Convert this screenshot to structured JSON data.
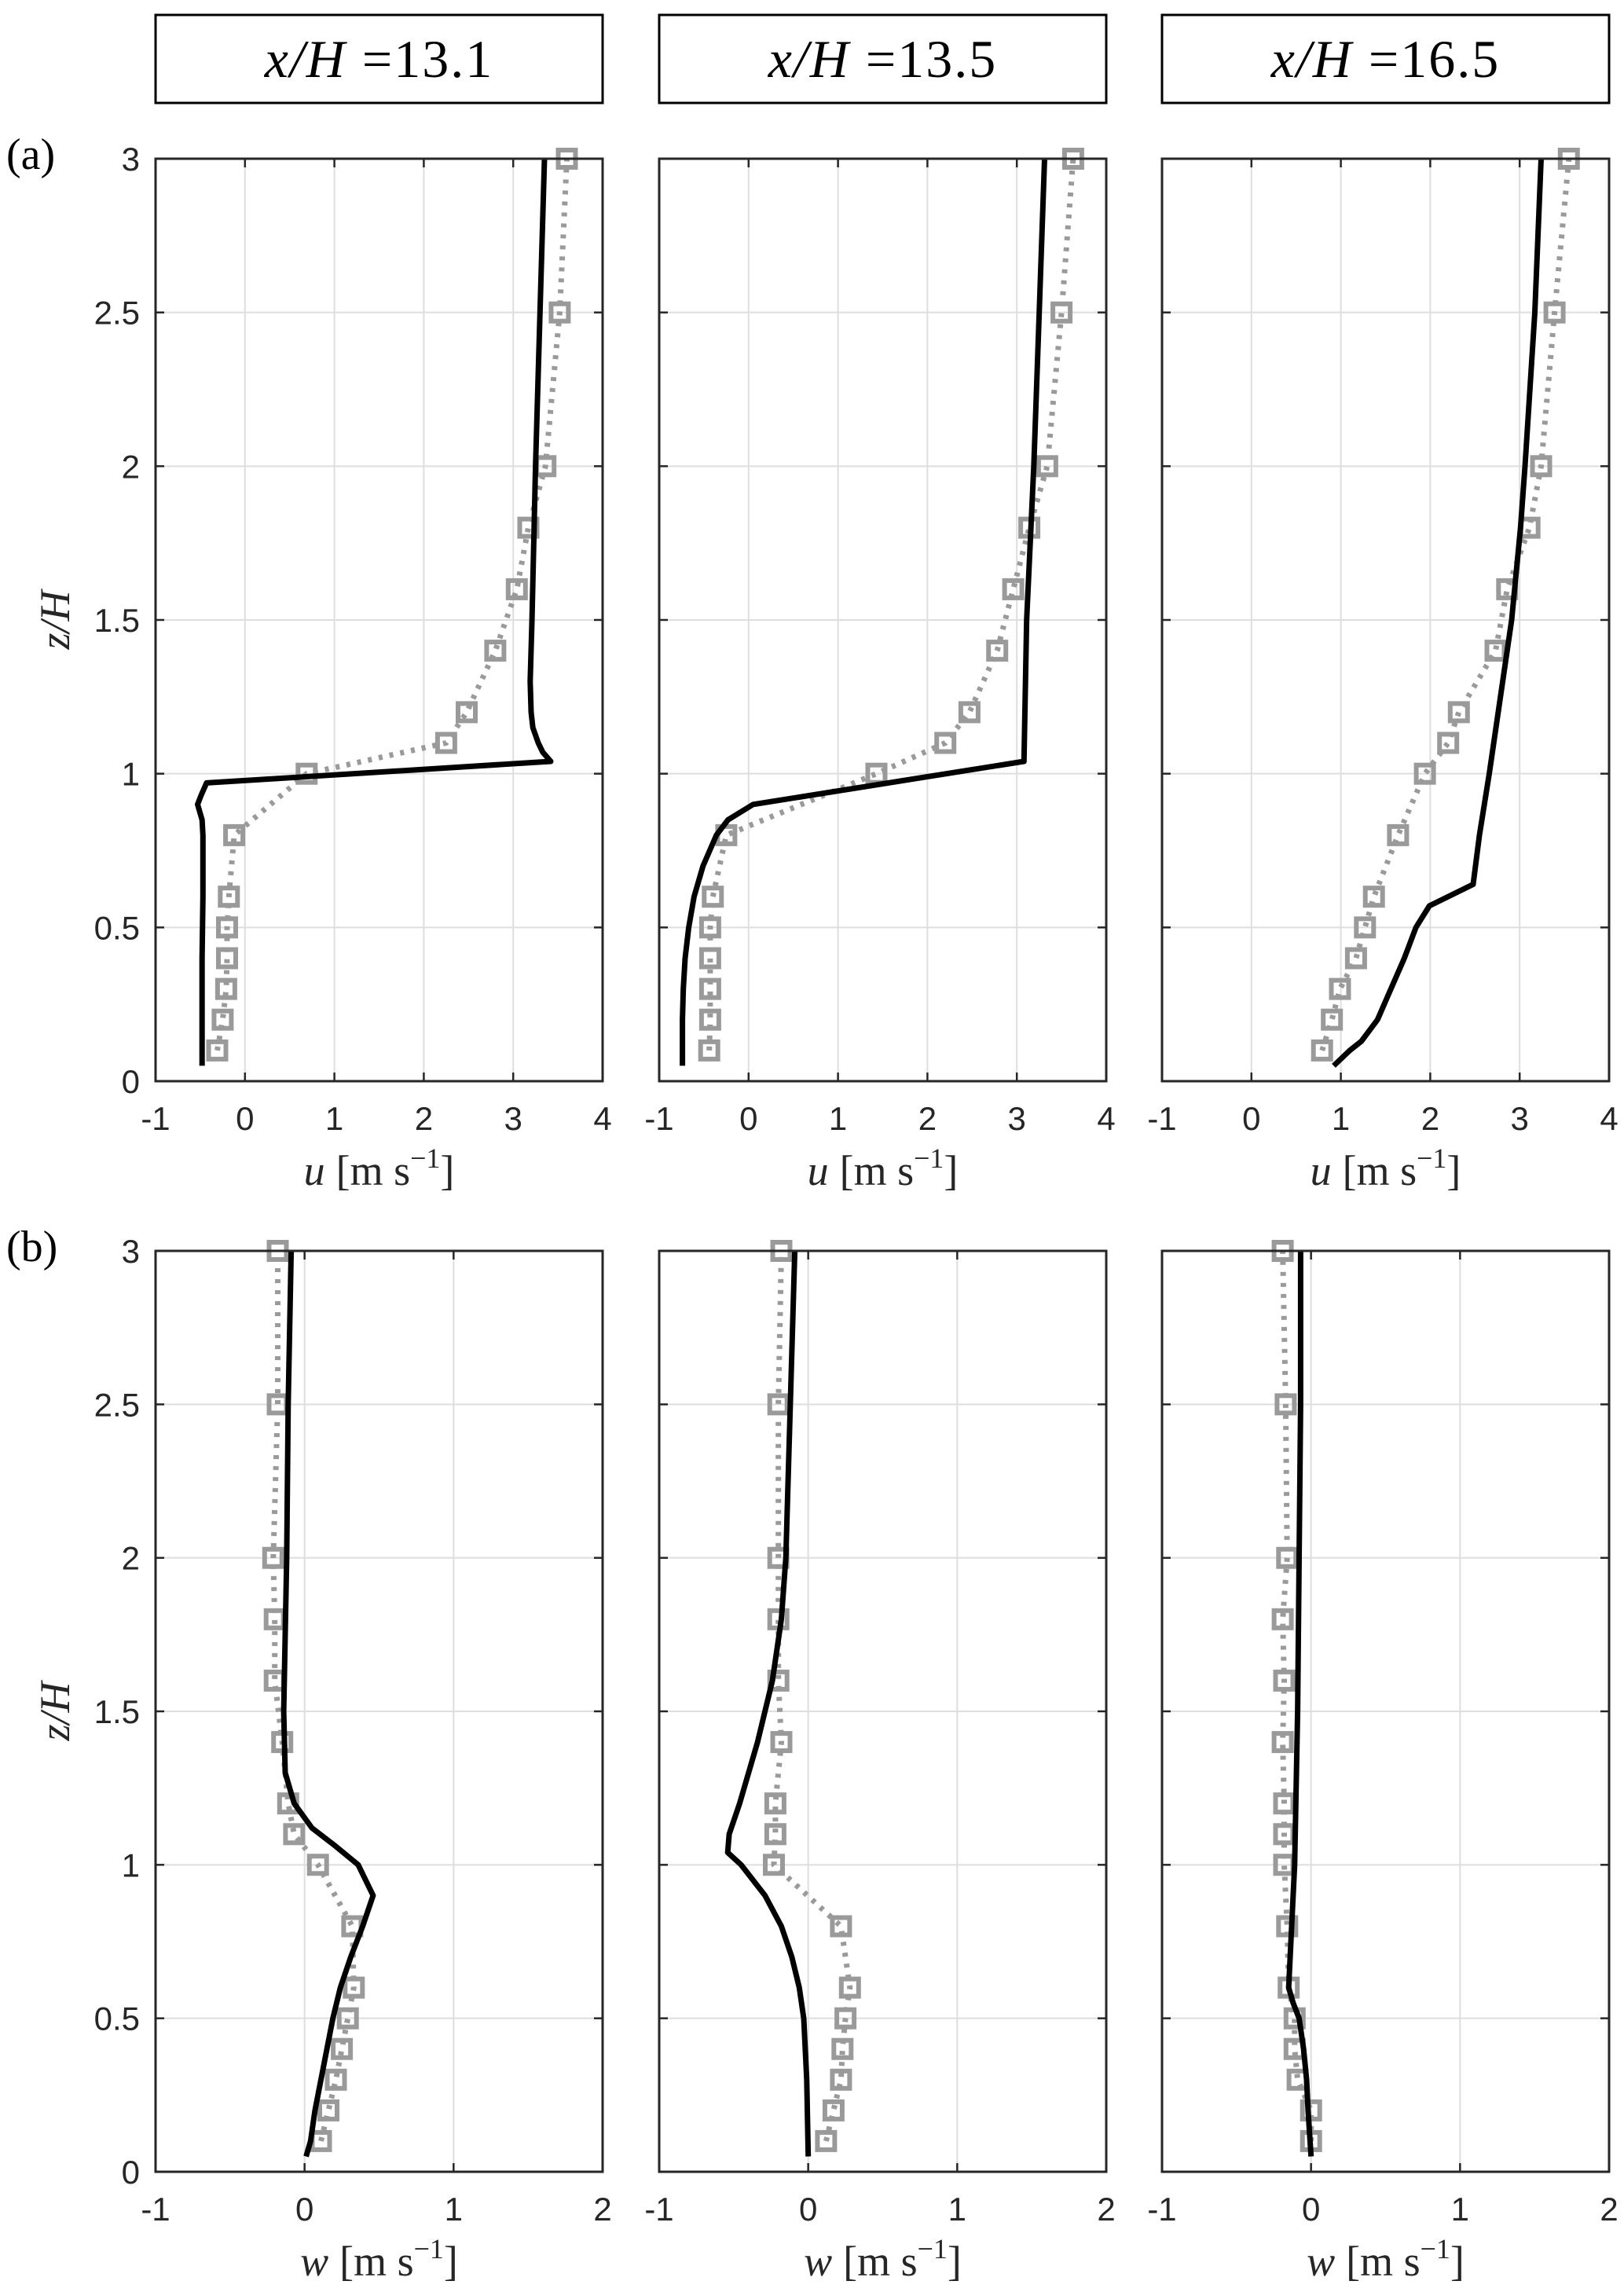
{
  "figure": {
    "panel_labels": [
      "(a)",
      "(b)"
    ]
  },
  "columns": [
    {
      "symbol": "x/H",
      "value": "=13.1"
    },
    {
      "symbol": "x/H",
      "value": "=13.5"
    },
    {
      "symbol": "x/H",
      "value": "=16.5"
    }
  ],
  "style": {
    "model_color": "#000000",
    "measured_color": "#9a9a9a",
    "grid_color": "#dedede",
    "axis_color": "#262626"
  },
  "chart_data": [
    {
      "type": "line",
      "xlim": [
        -1,
        4
      ],
      "ylim": [
        0,
        3
      ],
      "xticks": [
        -1,
        0,
        1,
        2,
        3,
        4
      ],
      "xtick_labels": [
        "-1",
        "0",
        "1",
        "2",
        "3",
        "4"
      ],
      "yticks": [
        0,
        0.5,
        1,
        1.5,
        2,
        2.5,
        3
      ],
      "ytick_labels": [
        "0",
        "0.5",
        "1",
        "1.5",
        "2",
        "2.5",
        "3"
      ],
      "grid": true,
      "xlabel": {
        "symbol": "u",
        "unit": "[m s",
        "unit_exp": "−1",
        "unit_close": "]"
      },
      "ylabel": {
        "symbol": "z/H"
      },
      "series": [
        {
          "line": "dotted",
          "marker": "square",
          "color": "#9a9a9a",
          "x": [
            -0.31,
            -0.25,
            -0.21,
            -0.2,
            -0.2,
            -0.18,
            -0.12,
            0.69,
            2.25,
            2.48,
            2.8,
            3.04,
            3.17,
            3.36,
            3.52,
            3.6
          ],
          "y": [
            0.1,
            0.2,
            0.3,
            0.4,
            0.5,
            0.6,
            0.8,
            1.0,
            1.1,
            1.2,
            1.4,
            1.6,
            1.8,
            2.0,
            2.5,
            3.0
          ]
        },
        {
          "line": "solid",
          "marker": "none",
          "color": "#000000",
          "x": [
            -0.48,
            -0.48,
            -0.48,
            -0.47,
            -0.47,
            -0.48,
            -0.53,
            -0.49,
            -0.43,
            3.42,
            3.33,
            3.28,
            3.22,
            3.2,
            3.19,
            3.21,
            3.25,
            3.3,
            3.35
          ],
          "y": [
            0.05,
            0.2,
            0.4,
            0.6,
            0.8,
            0.85,
            0.9,
            0.93,
            0.97,
            1.04,
            1.07,
            1.1,
            1.15,
            1.2,
            1.3,
            1.5,
            2.0,
            2.5,
            3.0
          ]
        }
      ]
    },
    {
      "type": "line",
      "xlim": [
        -1,
        4
      ],
      "ylim": [
        0,
        3
      ],
      "xticks": [
        -1,
        0,
        1,
        2,
        3,
        4
      ],
      "xtick_labels": [
        "-1",
        "0",
        "1",
        "2",
        "3",
        "4"
      ],
      "yticks": [
        0,
        0.5,
        1,
        1.5,
        2,
        2.5,
        3
      ],
      "grid": true,
      "xlabel": {
        "symbol": "u",
        "unit": "[m s",
        "unit_exp": "−1",
        "unit_close": "]"
      },
      "series": [
        {
          "line": "dotted",
          "marker": "square",
          "color": "#9a9a9a",
          "x": [
            -0.44,
            -0.43,
            -0.43,
            -0.43,
            -0.43,
            -0.4,
            -0.25,
            1.43,
            2.2,
            2.47,
            2.78,
            2.96,
            3.14,
            3.34,
            3.5,
            3.63
          ],
          "y": [
            0.1,
            0.2,
            0.3,
            0.4,
            0.5,
            0.6,
            0.8,
            1.0,
            1.1,
            1.2,
            1.4,
            1.6,
            1.8,
            2.0,
            2.5,
            3.0
          ]
        },
        {
          "line": "solid",
          "marker": "none",
          "color": "#000000",
          "x": [
            -0.74,
            -0.74,
            -0.73,
            -0.71,
            -0.67,
            -0.61,
            -0.51,
            -0.36,
            -0.23,
            0.05,
            3.08,
            3.11,
            3.19,
            3.25,
            3.31
          ],
          "y": [
            0.05,
            0.2,
            0.3,
            0.4,
            0.5,
            0.6,
            0.7,
            0.8,
            0.85,
            0.9,
            1.04,
            1.5,
            2.0,
            2.5,
            3.0
          ]
        }
      ]
    },
    {
      "type": "line",
      "xlim": [
        -1,
        4
      ],
      "ylim": [
        0,
        3
      ],
      "xticks": [
        -1,
        0,
        1,
        2,
        3,
        4
      ],
      "xtick_labels": [
        "-1",
        "0",
        "1",
        "2",
        "3",
        "4"
      ],
      "yticks": [
        0,
        0.5,
        1,
        1.5,
        2,
        2.5,
        3
      ],
      "grid": true,
      "xlabel": {
        "symbol": "u",
        "unit": "[m s",
        "unit_exp": "−1",
        "unit_close": "]"
      },
      "series": [
        {
          "line": "dotted",
          "marker": "square",
          "color": "#9a9a9a",
          "x": [
            0.79,
            0.9,
            0.99,
            1.17,
            1.27,
            1.37,
            1.64,
            1.94,
            2.2,
            2.32,
            2.73,
            2.86,
            3.11,
            3.24,
            3.39,
            3.55
          ],
          "y": [
            0.1,
            0.2,
            0.3,
            0.4,
            0.5,
            0.6,
            0.8,
            1.0,
            1.1,
            1.2,
            1.4,
            1.6,
            1.8,
            2.0,
            2.5,
            3.0
          ]
        },
        {
          "line": "solid",
          "marker": "none",
          "color": "#000000",
          "x": [
            0.92,
            1.1,
            1.23,
            1.41,
            1.56,
            1.71,
            1.84,
            1.99,
            2.48,
            2.55,
            2.66,
            2.76,
            2.91,
            3.01,
            3.06,
            3.17,
            3.24
          ],
          "y": [
            0.05,
            0.1,
            0.13,
            0.2,
            0.3,
            0.4,
            0.5,
            0.57,
            0.64,
            0.8,
            1.0,
            1.2,
            1.5,
            1.8,
            2.0,
            2.5,
            3.0
          ]
        }
      ]
    },
    {
      "type": "line",
      "xlim": [
        -1,
        2
      ],
      "ylim": [
        0,
        3
      ],
      "xticks": [
        -1,
        0,
        1,
        2
      ],
      "xtick_labels": [
        "-1",
        "0",
        "1",
        "2"
      ],
      "yticks": [
        0,
        0.5,
        1,
        1.5,
        2,
        2.5,
        3
      ],
      "ytick_labels": [
        "0",
        "0.5",
        "1",
        "1.5",
        "2",
        "2.5",
        "3"
      ],
      "grid": true,
      "xlabel": {
        "symbol": "w",
        "unit": "[m s",
        "unit_exp": "−1",
        "unit_close": "]"
      },
      "ylabel": {
        "symbol": "z/H"
      },
      "series": [
        {
          "line": "dotted",
          "marker": "square",
          "color": "#9a9a9a",
          "x": [
            0.11,
            0.16,
            0.21,
            0.25,
            0.29,
            0.33,
            0.32,
            0.09,
            -0.07,
            -0.11,
            -0.15,
            -0.2,
            -0.2,
            -0.21,
            -0.18,
            -0.18
          ],
          "y": [
            0.1,
            0.2,
            0.3,
            0.4,
            0.5,
            0.6,
            0.8,
            1.0,
            1.1,
            1.2,
            1.4,
            1.6,
            1.8,
            2.0,
            2.5,
            3.0
          ]
        },
        {
          "line": "solid",
          "marker": "none",
          "color": "#000000",
          "x": [
            0.01,
            0.04,
            0.07,
            0.11,
            0.15,
            0.19,
            0.24,
            0.31,
            0.39,
            0.46,
            0.36,
            0.21,
            0.05,
            -0.07,
            -0.13,
            -0.14,
            -0.12,
            -0.11,
            -0.09
          ],
          "y": [
            0.05,
            0.1,
            0.2,
            0.3,
            0.4,
            0.5,
            0.6,
            0.7,
            0.8,
            0.9,
            1.0,
            1.06,
            1.12,
            1.2,
            1.3,
            1.5,
            2.0,
            2.5,
            3.0
          ]
        }
      ]
    },
    {
      "type": "line",
      "xlim": [
        -1,
        2
      ],
      "ylim": [
        0,
        3
      ],
      "xticks": [
        -1,
        0,
        1,
        2
      ],
      "xtick_labels": [
        "-1",
        "0",
        "1",
        "2"
      ],
      "yticks": [
        0,
        0.5,
        1,
        1.5,
        2,
        2.5,
        3
      ],
      "grid": true,
      "xlabel": {
        "symbol": "w",
        "unit": "[m s",
        "unit_exp": "−1",
        "unit_close": "]"
      },
      "series": [
        {
          "line": "dotted",
          "marker": "square",
          "color": "#9a9a9a",
          "x": [
            0.12,
            0.17,
            0.22,
            0.23,
            0.25,
            0.28,
            0.22,
            -0.23,
            -0.22,
            -0.22,
            -0.18,
            -0.2,
            -0.2,
            -0.2,
            -0.2,
            -0.18
          ],
          "y": [
            0.1,
            0.2,
            0.3,
            0.4,
            0.5,
            0.6,
            0.8,
            1.0,
            1.1,
            1.2,
            1.4,
            1.6,
            1.8,
            2.0,
            2.5,
            3.0
          ]
        },
        {
          "line": "solid",
          "marker": "none",
          "color": "#000000",
          "x": [
            0.0,
            -0.01,
            -0.03,
            -0.06,
            -0.11,
            -0.18,
            -0.29,
            -0.45,
            -0.54,
            -0.53,
            -0.46,
            -0.34,
            -0.24,
            -0.18,
            -0.15,
            -0.12,
            -0.09
          ],
          "y": [
            0.05,
            0.3,
            0.5,
            0.6,
            0.7,
            0.8,
            0.9,
            1.0,
            1.04,
            1.1,
            1.2,
            1.4,
            1.6,
            1.8,
            2.0,
            2.5,
            3.0
          ]
        }
      ]
    },
    {
      "type": "line",
      "xlim": [
        -1,
        2
      ],
      "ylim": [
        0,
        3
      ],
      "xticks": [
        -1,
        0,
        1,
        2
      ],
      "xtick_labels": [
        "-1",
        "0",
        "1",
        "2"
      ],
      "yticks": [
        0,
        0.5,
        1,
        1.5,
        2,
        2.5,
        3
      ],
      "grid": true,
      "xlabel": {
        "symbol": "w",
        "unit": "[m s",
        "unit_exp": "−1",
        "unit_close": "]"
      },
      "series": [
        {
          "line": "dotted",
          "marker": "square",
          "color": "#9a9a9a",
          "x": [
            0.0,
            0.0,
            -0.09,
            -0.11,
            -0.11,
            -0.15,
            -0.16,
            -0.18,
            -0.18,
            -0.18,
            -0.19,
            -0.18,
            -0.19,
            -0.16,
            -0.17,
            -0.19
          ],
          "y": [
            0.1,
            0.2,
            0.3,
            0.4,
            0.5,
            0.6,
            0.8,
            1.0,
            1.1,
            1.2,
            1.4,
            1.6,
            1.8,
            2.0,
            2.5,
            3.0
          ]
        },
        {
          "line": "solid",
          "marker": "none",
          "color": "#000000",
          "x": [
            0.0,
            -0.02,
            -0.03,
            -0.05,
            -0.08,
            -0.12,
            -0.15,
            -0.13,
            -0.11,
            -0.09,
            -0.08,
            -0.07,
            -0.07
          ],
          "y": [
            0.05,
            0.2,
            0.3,
            0.4,
            0.5,
            0.55,
            0.6,
            0.8,
            1.0,
            1.5,
            2.0,
            2.5,
            3.0
          ]
        }
      ]
    }
  ]
}
